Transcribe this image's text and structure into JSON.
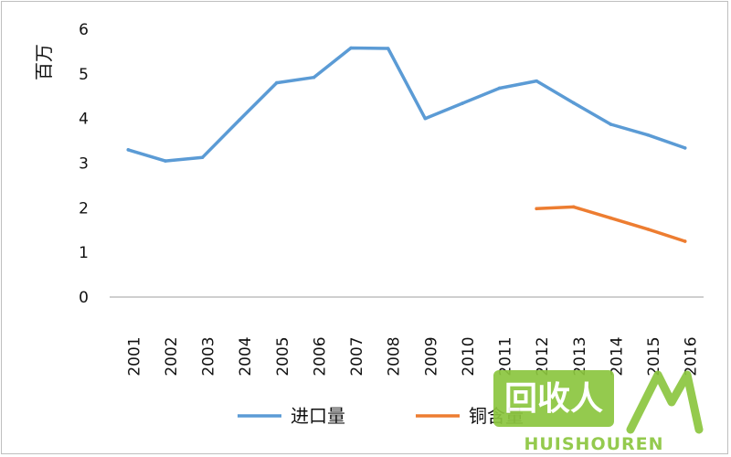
{
  "chart_data": {
    "type": "line",
    "ylabel": "百万",
    "ylim": [
      0,
      6
    ],
    "yticks": [
      0,
      1,
      2,
      3,
      4,
      5,
      6
    ],
    "categories": [
      "2001",
      "2002",
      "2003",
      "2004",
      "2005",
      "2006",
      "2007",
      "2008",
      "2009",
      "2010",
      "2011",
      "2012",
      "2013",
      "2014",
      "2015",
      "2016"
    ],
    "series": [
      {
        "name": "进口量",
        "color": "#5b9bd5",
        "values": [
          3.3,
          3.05,
          3.13,
          3.97,
          4.8,
          4.92,
          5.58,
          5.57,
          4.0,
          4.34,
          4.68,
          4.84,
          4.35,
          3.87,
          3.63,
          3.34
        ]
      },
      {
        "name": "铜含量",
        "color": "#ed7d31",
        "values": [
          null,
          null,
          null,
          null,
          null,
          null,
          null,
          null,
          null,
          null,
          null,
          1.98,
          2.02,
          1.77,
          1.52,
          1.25
        ]
      }
    ],
    "grid": false,
    "legend_position": "bottom"
  },
  "watermark": {
    "text": "HUISHOUREN",
    "logo_text": "回收人",
    "color": "#8cc63f"
  }
}
